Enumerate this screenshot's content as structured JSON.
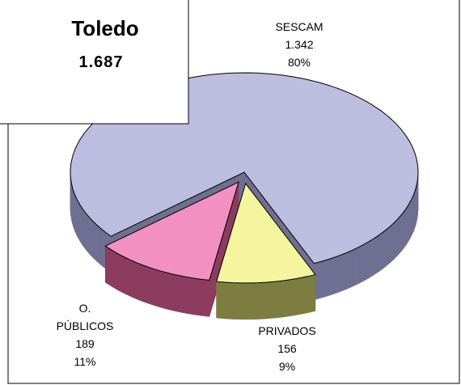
{
  "chart_data": {
    "type": "pie3d",
    "title": "Toledo",
    "subtitle": "1.687",
    "categories": [
      "SESCAM",
      "PRIVADOS",
      "O.\nPÚBLICOS"
    ],
    "values": [
      1342,
      156,
      189
    ],
    "value_labels": [
      "1.342",
      "156",
      "189"
    ],
    "percent_labels": [
      "80%",
      "9%",
      "11%"
    ],
    "colors": [
      "#bdbde0",
      "#f5f5a0",
      "#f291c1"
    ],
    "side_colors": [
      "#6f6f92",
      "#7d7d42",
      "#8c3c5e"
    ]
  }
}
